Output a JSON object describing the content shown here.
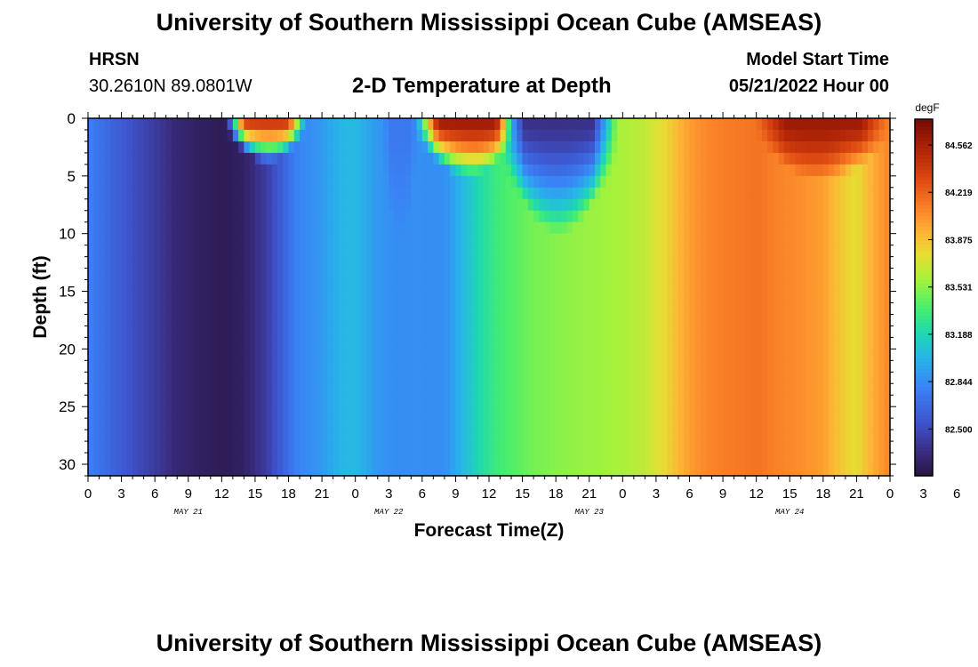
{
  "header": {
    "title": "University of Southern Mississippi Ocean Cube (AMSEAS)",
    "station": "HRSN",
    "coords": "30.2610N  89.0801W",
    "subtitle": "2-D Temperature at Depth",
    "start_label": "Model Start Time",
    "start_value": "05/21/2022 Hour 00"
  },
  "footer": {
    "title": "University of Southern Mississippi Ocean Cube (AMSEAS)"
  },
  "chart_data": {
    "type": "heatmap",
    "title": "2-D Temperature at Depth",
    "xlabel": "Forecast Time(Z)",
    "ylabel": "Depth (ft)",
    "x_hours": [
      0,
      72
    ],
    "x_tick_step_hours": 3,
    "x_tick_labels": [
      "0",
      "3",
      "6",
      "9",
      "12",
      "15",
      "18",
      "21",
      "0",
      "3",
      "6",
      "9",
      "12",
      "15",
      "18",
      "21",
      "0",
      "3",
      "6",
      "9",
      "12",
      "15",
      "18",
      "21",
      "0",
      "3",
      "6",
      "9",
      "12",
      "15",
      "18",
      "21",
      "0"
    ],
    "day_labels": [
      {
        "label": "MAY 21",
        "hour": 9
      },
      {
        "label": "MAY 22",
        "hour": 27
      },
      {
        "label": "MAY 23",
        "hour": 45
      },
      {
        "label": "MAY 24",
        "hour": 63
      }
    ],
    "ylim": [
      0,
      31
    ],
    "y_ticks": [
      0,
      5,
      10,
      15,
      20,
      25,
      30
    ],
    "colorbar": {
      "unit": "degF",
      "range": [
        82.16,
        84.75
      ],
      "ticks": [
        84.562,
        84.219,
        83.875,
        83.531,
        83.188,
        82.844,
        82.5
      ]
    },
    "deep_profile": {
      "hours": [
        0,
        2,
        4,
        6,
        8,
        10,
        12,
        14,
        16,
        17,
        18,
        19,
        20,
        21,
        22,
        23,
        24,
        25,
        26,
        27,
        28,
        30,
        32,
        33,
        34,
        35,
        36,
        37,
        38,
        39,
        40,
        42,
        44,
        46,
        48,
        50,
        52,
        53,
        54,
        55,
        56,
        58,
        60,
        62,
        64,
        66,
        68,
        69,
        70,
        72
      ],
      "values": [
        82.8,
        82.65,
        82.52,
        82.42,
        82.3,
        82.25,
        82.22,
        82.26,
        82.42,
        82.56,
        82.7,
        82.82,
        82.86,
        82.9,
        82.98,
        83.04,
        83.04,
        82.96,
        82.9,
        82.86,
        82.85,
        82.86,
        82.86,
        82.96,
        83.08,
        83.2,
        83.28,
        83.36,
        83.4,
        83.44,
        83.48,
        83.52,
        83.55,
        83.57,
        83.6,
        83.66,
        83.8,
        83.92,
        84.0,
        84.06,
        84.1,
        84.13,
        84.16,
        84.1,
        84.06,
        84.0,
        83.82,
        83.76,
        83.9,
        84.1
      ]
    },
    "surface_features": [
      {
        "type": "warm",
        "hour_start": 12.5,
        "hour_end": 19.5,
        "depth_ft": 3.8,
        "peak": 84.45
      },
      {
        "type": "warm",
        "hour_start": 29.5,
        "hour_end": 38.5,
        "depth_ft": 5.0,
        "peak": 84.62
      },
      {
        "type": "cool",
        "hour_start": 37.0,
        "hour_end": 47.5,
        "depth_ft": 10.0,
        "peak": 82.35
      },
      {
        "type": "cool",
        "hour_start": 26.5,
        "hour_end": 29.5,
        "depth_ft": 10.5,
        "peak": 82.75
      },
      {
        "type": "warm",
        "hour_start": 60.0,
        "hour_end": 72.0,
        "depth_ft": 5.5,
        "peak": 84.62
      }
    ]
  }
}
